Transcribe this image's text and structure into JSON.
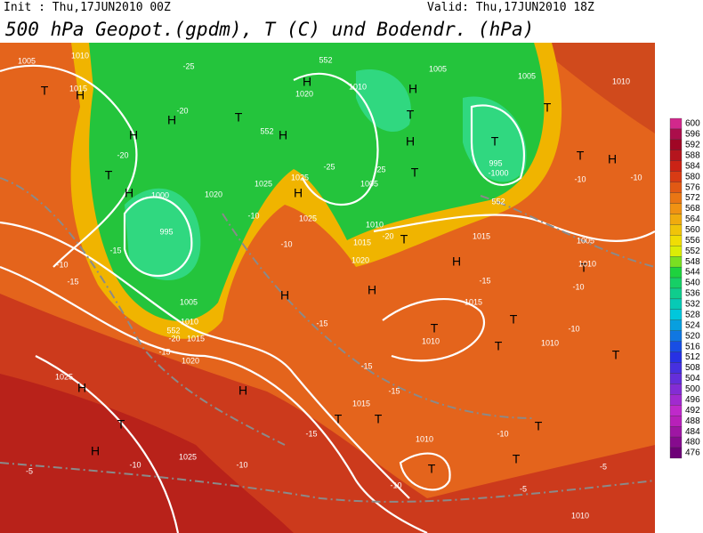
{
  "header": {
    "init": "Init : Thu,17JUN2010 00Z",
    "valid": "Valid: Thu,17JUN2010 18Z",
    "title": "500 hPa Geopot.(gpdm), T (C) und Bodendr. (hPa)"
  },
  "colorbar": {
    "levels": [
      600,
      596,
      592,
      588,
      584,
      580,
      576,
      572,
      568,
      564,
      560,
      556,
      552,
      548,
      544,
      540,
      536,
      532,
      528,
      524,
      520,
      516,
      512,
      508,
      504,
      500,
      496,
      492,
      488,
      484,
      480,
      476
    ]
  },
  "map": {
    "labels": [
      "T",
      "H",
      "H",
      "H",
      "T",
      "H",
      "H",
      "H",
      "T",
      "H",
      "T",
      "T",
      "T",
      "T",
      "H",
      "T",
      "H",
      "H",
      "T",
      "H",
      "T",
      "H",
      "H",
      "T",
      "T",
      "T",
      "T",
      "H",
      "H",
      "T",
      "H",
      "T",
      "T",
      "T",
      "T",
      "T",
      "1005",
      "1010",
      "1015",
      "1000",
      "995",
      "1005",
      "1010",
      "1015",
      "1020",
      "1020",
      "1010",
      "1005",
      "1005",
      "1010",
      "995",
      "-1000",
      "1025",
      "1025",
      "1020",
      "1025",
      "1005",
      "1010",
      "1015",
      "1020",
      "1015",
      "1005",
      "1010",
      "1015",
      "1010",
      "1010",
      "1025",
      "1015",
      "1010",
      "1025",
      "1010",
      "-25",
      "-20",
      "-20",
      "-15",
      "-10",
      "-15",
      "-15",
      "-20",
      "-10",
      "-10",
      "-15",
      "-15",
      "-15",
      "-15",
      "-10",
      "-10",
      "-5",
      "-10",
      "-5",
      "-10",
      "-5",
      "-10",
      "-10",
      "-10",
      "-20",
      "-25",
      "-25",
      "-15",
      "-10",
      "552",
      "552",
      "552",
      "552"
    ]
  }
}
